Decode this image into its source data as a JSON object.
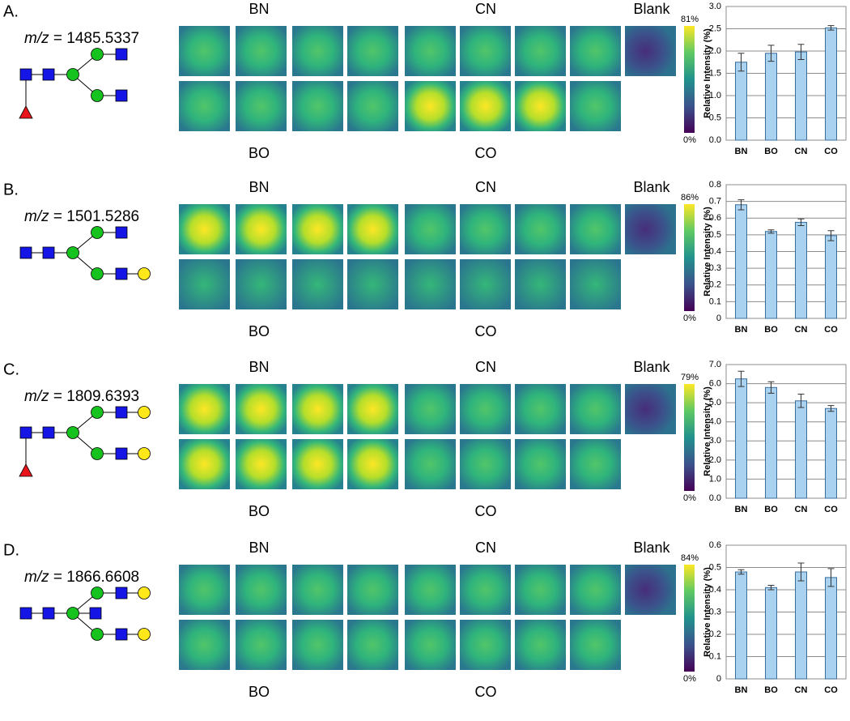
{
  "panels": [
    {
      "label": "A.",
      "mz_label": "m/z",
      "mz_value": " = 1485.5337",
      "top_groups": [
        "BN",
        "CN",
        "Blank"
      ],
      "bottom_groups": [
        "BO",
        "CO"
      ],
      "colorbar_max": "81%",
      "colorbar_min": "0%"
    },
    {
      "label": "B.",
      "mz_label": "m/z",
      "mz_value": " = 1501.5286",
      "top_groups": [
        "BN",
        "CN",
        "Blank"
      ],
      "bottom_groups": [
        "BO",
        "CO"
      ],
      "colorbar_max": "86%",
      "colorbar_min": "0%"
    },
    {
      "label": "C.",
      "mz_label": "m/z",
      "mz_value": " = 1809.6393",
      "top_groups": [
        "BN",
        "CN",
        "Blank"
      ],
      "bottom_groups": [
        "BO",
        "CO"
      ],
      "colorbar_max": "79%",
      "colorbar_min": "0%"
    },
    {
      "label": "D.",
      "mz_label": "m/z",
      "mz_value": " = 1866.6608",
      "top_groups": [
        "BN",
        "CN",
        "Blank"
      ],
      "bottom_groups": [
        "BO",
        "CO"
      ],
      "colorbar_max": "84%",
      "colorbar_min": "0%"
    }
  ],
  "chart_data": [
    {
      "type": "bar",
      "ylabel": "Relative Intensity (%)",
      "categories": [
        "BN",
        "BO",
        "CN",
        "CO"
      ],
      "values": [
        1.75,
        1.95,
        1.98,
        2.52
      ],
      "errors": [
        0.2,
        0.18,
        0.17,
        0.05
      ],
      "color": "#a9d1f0",
      "edge_color": "#3a6f9c",
      "grid": true,
      "ylim": [
        0,
        3
      ],
      "yticks": [
        {
          "value": 0,
          "label": "0.0"
        },
        0.5,
        {
          "value": 1,
          "label": "1.0"
        },
        1.5,
        {
          "value": 2,
          "label": "2.0"
        },
        2.5,
        {
          "value": 3,
          "label": "3.0"
        }
      ]
    },
    {
      "type": "bar",
      "ylabel": "Relative Intensity (%)",
      "categories": [
        "BN",
        "BO",
        "CN",
        "CO"
      ],
      "values": [
        0.68,
        0.52,
        0.575,
        0.495
      ],
      "errors": [
        0.03,
        0.01,
        0.02,
        0.03
      ],
      "color": "#a9d1f0",
      "edge_color": "#3a6f9c",
      "grid": true,
      "ylim": [
        0,
        0.8
      ],
      "yticks": [
        0,
        0.1,
        0.2,
        0.3,
        0.4,
        0.5,
        0.6,
        0.7,
        0.8
      ]
    },
    {
      "type": "bar",
      "ylabel": "Relative Intensity (%)",
      "categories": [
        "BN",
        "BO",
        "CN",
        "CO"
      ],
      "values": [
        6.25,
        5.8,
        5.1,
        4.7
      ],
      "errors": [
        0.4,
        0.3,
        0.35,
        0.15
      ],
      "color": "#a9d1f0",
      "edge_color": "#3a6f9c",
      "grid": true,
      "ylim": [
        0,
        7
      ],
      "yticks": [
        {
          "value": 0,
          "label": "0.0"
        },
        {
          "value": 1,
          "label": "1.0"
        },
        {
          "value": 2,
          "label": "2.0"
        },
        {
          "value": 3,
          "label": "3.0"
        },
        {
          "value": 4,
          "label": "4.0"
        },
        {
          "value": 5,
          "label": "5.0"
        },
        {
          "value": 6,
          "label": "6.0"
        },
        {
          "value": 7,
          "label": "7.0"
        }
      ]
    },
    {
      "type": "bar",
      "ylabel": "Relative Intensity (%)",
      "categories": [
        "BN",
        "BO",
        "CN",
        "CO"
      ],
      "values": [
        0.48,
        0.41,
        0.48,
        0.455
      ],
      "errors": [
        0.01,
        0.01,
        0.04,
        0.04
      ],
      "color": "#a9d1f0",
      "edge_color": "#3a6f9c",
      "grid": true,
      "ylim": [
        0,
        0.6
      ],
      "yticks": [
        0,
        0.1,
        0.2,
        0.3,
        0.4,
        0.5,
        0.6
      ]
    }
  ]
}
